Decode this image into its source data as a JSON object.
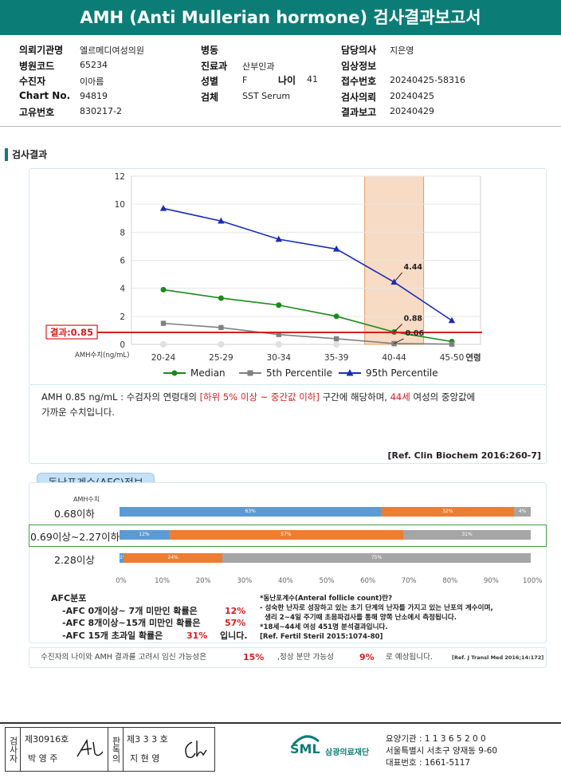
{
  "title": "AMH (Anti Mullerian hormone) 검사결과보고서",
  "header": {
    "col1": [
      {
        "label": "의뢰기관명",
        "value": "엘르메디여성의원"
      },
      {
        "label": "병원코드",
        "value": "65234"
      },
      {
        "label": "수진자",
        "value": "이아름"
      },
      {
        "label": "Chart No.",
        "value": "94819"
      },
      {
        "label": "고유번호",
        "value": "830217-2"
      }
    ],
    "col2": [
      {
        "label": "병동",
        "value": ""
      },
      {
        "label": "진료과",
        "value": "산부인과"
      },
      {
        "label": "성별",
        "value": "F"
      },
      {
        "label": "검체",
        "value": "SST Serum"
      }
    ],
    "age_label": "나이",
    "age_value": "41",
    "col3": [
      {
        "label": "담당의사",
        "value": "지은영"
      },
      {
        "label": "임상정보",
        "value": ""
      },
      {
        "label": "접수번호",
        "value": "20240425-58316"
      },
      {
        "label": "검사의뢰",
        "value": "20240425"
      },
      {
        "label": "결과보고",
        "value": "20240429"
      }
    ]
  },
  "section_title": "검사결과",
  "chart_data": {
    "type": "line",
    "categories": [
      "20-24",
      "25-29",
      "30-34",
      "35-39",
      "40-44",
      "45-50"
    ],
    "x_axis_suffix": "연령",
    "y_axis_label": "AMH수치(ng/mL)",
    "ylim": [
      0,
      12
    ],
    "yticks": [
      "0",
      "2",
      "4",
      "6",
      "8",
      "10",
      "12"
    ],
    "series": [
      {
        "name": "Median",
        "color": "#1a8a1a",
        "marker": "circle",
        "values": [
          3.9,
          3.3,
          2.8,
          2.0,
          0.88,
          0.2
        ]
      },
      {
        "name": "5th Percentile",
        "color": "#808080",
        "marker": "square",
        "values": [
          1.5,
          1.2,
          0.7,
          0.4,
          0.06,
          0.02
        ]
      },
      {
        "name": "95th Percentile",
        "color": "#1a2db5",
        "marker": "triangle",
        "values": [
          9.7,
          8.8,
          7.5,
          6.8,
          4.44,
          1.7
        ]
      }
    ],
    "data_labels": [
      "4.44",
      "0.88",
      "0.06"
    ],
    "result_line": {
      "value": 0.85,
      "label": "결과:0.85",
      "color": "#d81e1e"
    },
    "highlight_category": "40-44",
    "grid": true,
    "legend_position": "bottom"
  },
  "interpretation": {
    "prefix": "AMH  0.85 ng/mL : 수검자의 연령대의 ",
    "range_text": "[하위 5% 이상 ~ 중간값 이하]",
    "mid": " 구간에 해당하며, ",
    "age_text": "44세",
    "suffix": " 여성의 중앙값에",
    "line2": "가까운 수치입니다.",
    "reference": "[Ref. Clin Biochem 2016:260-7]"
  },
  "afc": {
    "tab_label": "동난포계수(AFC)정보",
    "axis_title": "AMH수치",
    "colors": {
      "blue": "#5b9bd5",
      "orange": "#ed7d31",
      "gray": "#a5a5a5"
    },
    "rows": [
      {
        "label": "0.68이하",
        "segments": [
          {
            "value": 63,
            "text": "63%",
            "color": "blue"
          },
          {
            "value": 32,
            "text": "32%",
            "color": "orange"
          },
          {
            "value": 4,
            "text": "4%",
            "color": "gray"
          }
        ]
      },
      {
        "label": "0.69이상~2.27이하",
        "segments": [
          {
            "value": 12,
            "text": "12%",
            "color": "blue"
          },
          {
            "value": 57,
            "text": "57%",
            "color": "orange"
          },
          {
            "value": 31,
            "text": "31%",
            "color": "gray"
          }
        ]
      },
      {
        "label": "2.28이상",
        "segments": [
          {
            "value": 1,
            "text": "1%",
            "color": "blue"
          },
          {
            "value": 24,
            "text": "24%",
            "color": "orange"
          },
          {
            "value": 75,
            "text": "75%",
            "color": "gray"
          }
        ]
      }
    ],
    "highlight_row": 1,
    "xticks": [
      "0%",
      "10%",
      "20%",
      "30%",
      "40%",
      "50%",
      "60%",
      "70%",
      "80%",
      "90%",
      "100%"
    ],
    "dist_title": "AFC분포",
    "dist": [
      {
        "text": "-AFC  0개이상~ 7개 미만인 확률은",
        "value": "12%",
        "tail": ""
      },
      {
        "text": "-AFC  8개이상~15개 미만인 확률은",
        "value": "57%",
        "tail": ""
      },
      {
        "text": "-AFC  15개 초과일 확률은",
        "value": "31%",
        "tail": "입니다."
      }
    ],
    "notes": [
      "*동난포계수(Anteral follicle count)란?",
      "- 성숙한 난자로 성장하고 있는 초기 단계의 난자를 가지고 있는 난포의 계수이며,",
      "  생리 2~4일 주기때 초음파검사를 통해 양쪽 난소에서 측정됩니다.",
      "*18세~44세 여성 451명 분석결과입니다.",
      "[Ref. Fertil Steril 2015:1074-80]"
    ]
  },
  "pregnancy": {
    "t1": "수진자의 나이와 AMH 결과를 고려시 임신 가능성은",
    "v1": "15%",
    "t2": ",정상 분만 가능성",
    "v2": "9%",
    "t3": "로 예상됩니다.",
    "ref": "[Ref. J Transl Med 2016;14:172]"
  },
  "footer": {
    "box1_label": "검사자",
    "box1_no": "제30916호",
    "box1_name": "박 영 주",
    "box2_label": "판독의",
    "box2_no": "제3 3 3 호",
    "box2_name": "지 현 영",
    "logo_sml": "SML",
    "logo_org": "삼광의료재단",
    "org_lines": [
      "요양기관 : 1 1 3 6 5 2 0 0",
      "서울특별시 서초구 양재동 9-60",
      "대표번호 : 1661-5117"
    ]
  }
}
